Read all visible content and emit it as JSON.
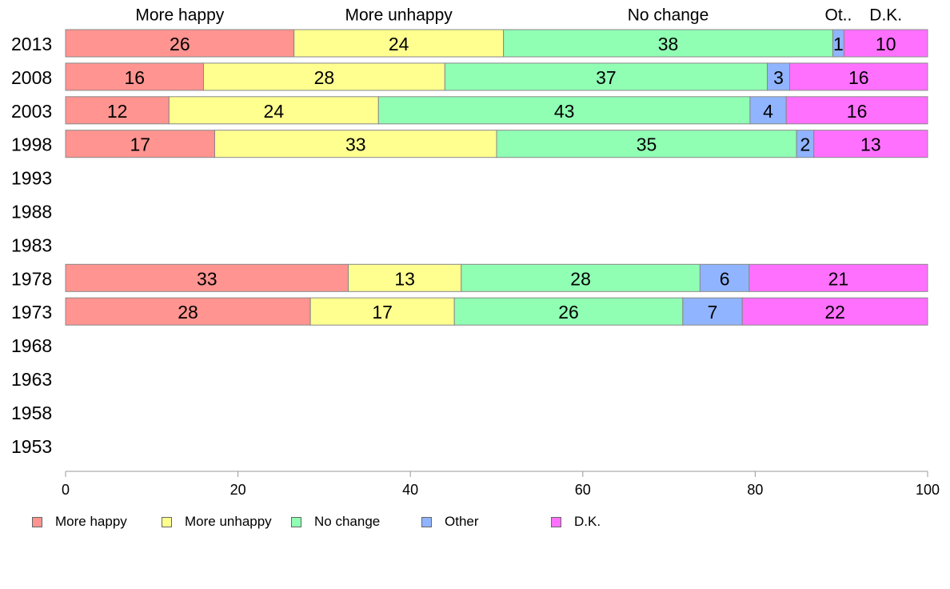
{
  "chart_data": {
    "type": "bar",
    "orientation": "horizontal",
    "stacked": true,
    "title": "",
    "xlabel": "",
    "ylabel": "",
    "xlim": [
      0,
      100
    ],
    "x_ticks": [
      "0",
      "20",
      "40",
      "60",
      "80",
      "100"
    ],
    "categories": [
      "2013",
      "2008",
      "2003",
      "1998",
      "1993",
      "1988",
      "1983",
      "1978",
      "1973",
      "1968",
      "1963",
      "1958",
      "1953"
    ],
    "column_headers": [
      "More happy",
      "More unhappy",
      "No change",
      "Ot..",
      "D.K."
    ],
    "series": [
      {
        "name": "More happy",
        "color": "#ff9490",
        "values": [
          26.5,
          16,
          12,
          17.3,
          null,
          null,
          null,
          32.8,
          28.4,
          null,
          null,
          null,
          null
        ],
        "labels": [
          "26",
          "16",
          "12",
          "17",
          null,
          null,
          null,
          "33",
          "28",
          null,
          null,
          null,
          null
        ]
      },
      {
        "name": "More unhappy",
        "color": "#ffff90",
        "values": [
          24.3,
          28,
          24.3,
          32.7,
          null,
          null,
          null,
          13.1,
          16.7,
          null,
          null,
          null,
          null
        ],
        "labels": [
          "24",
          "28",
          "24",
          "33",
          null,
          null,
          null,
          "13",
          "17",
          null,
          null,
          null,
          null
        ]
      },
      {
        "name": "No change",
        "color": "#90ffb4",
        "values": [
          38.2,
          37.4,
          43.1,
          34.8,
          null,
          null,
          null,
          27.7,
          26.5,
          null,
          null,
          null,
          null
        ],
        "labels": [
          "38",
          "37",
          "43",
          "35",
          null,
          null,
          null,
          "28",
          "26",
          null,
          null,
          null,
          null
        ]
      },
      {
        "name": "Other",
        "color": "#90b4ff",
        "values": [
          1.3,
          2.6,
          4.2,
          2.0,
          null,
          null,
          null,
          5.7,
          6.9,
          null,
          null,
          null,
          null
        ],
        "labels": [
          "1",
          "3",
          "4",
          "2",
          null,
          null,
          null,
          "6",
          "7",
          null,
          null,
          null,
          null
        ]
      },
      {
        "name": "D.K.",
        "color": "#ff70ff",
        "values": [
          9.7,
          16,
          16.4,
          13.2,
          null,
          null,
          null,
          20.7,
          21.5,
          null,
          null,
          null,
          null
        ],
        "labels": [
          "10",
          "16",
          "16",
          "13",
          null,
          null,
          null,
          "21",
          "22",
          null,
          null,
          null,
          null
        ]
      }
    ],
    "legend": {
      "position": "bottom",
      "items": [
        "More happy",
        "More unhappy",
        "No change",
        "Other",
        "D.K."
      ]
    },
    "grid": false
  }
}
